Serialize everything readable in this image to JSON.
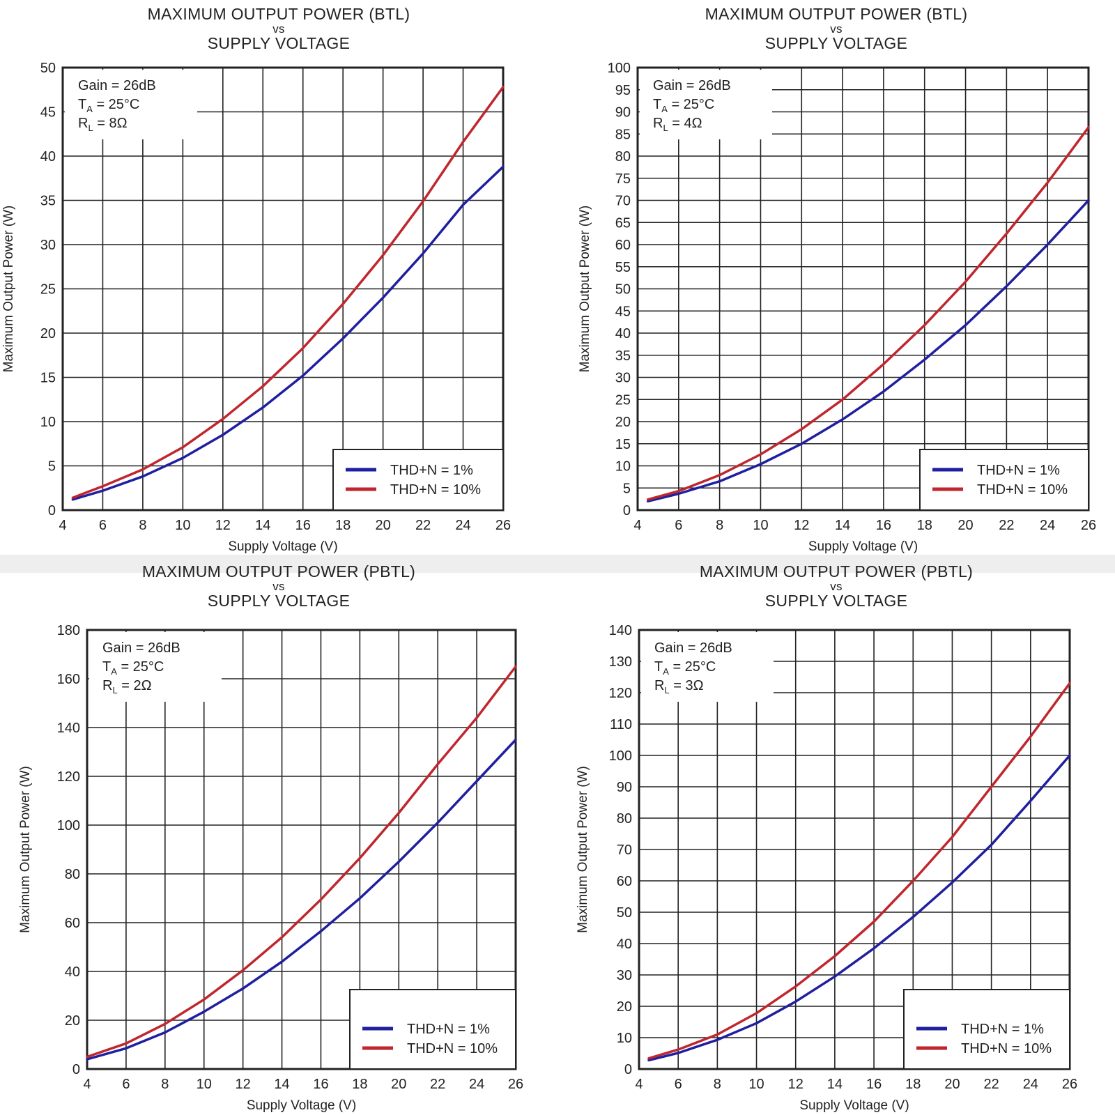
{
  "colors": {
    "series_1pct": "#1f1fa0",
    "series_10pct": "#c0262d",
    "grid": "#222222"
  },
  "chart_data": [
    {
      "type": "line",
      "title_line1": "MAXIMUM OUTPUT POWER (BTL)",
      "title_vs": "vs",
      "title_line2": "SUPPLY VOLTAGE",
      "xlabel": "Supply Voltage (V)",
      "ylabel": "Maximum Output Power (W)",
      "xlim": [
        4,
        26
      ],
      "ylim": [
        0,
        50
      ],
      "x_ticks": [
        "4",
        "6",
        "8",
        "10",
        "12",
        "14",
        "16",
        "18",
        "20",
        "22",
        "24",
        "26"
      ],
      "y_ticks": [
        "0",
        "5",
        "10",
        "15",
        "20",
        "25",
        "30",
        "35",
        "40",
        "45",
        "50"
      ],
      "conditions": {
        "gain": "Gain = 26dB",
        "ta": "T",
        "ta_sub": "A",
        "ta_val": " = 25°C",
        "rl": "R",
        "rl_sub": "L",
        "rl_val": " = 8Ω"
      },
      "series": [
        {
          "name": "THD+N = 1%",
          "x": [
            4.5,
            6,
            8,
            10,
            12,
            14,
            16,
            18,
            20,
            22,
            24,
            26
          ],
          "y": [
            1.2,
            2.2,
            3.8,
            5.9,
            8.5,
            11.6,
            15.2,
            19.4,
            24.0,
            29.0,
            34.5,
            38.8
          ]
        },
        {
          "name": "THD+N = 10%",
          "x": [
            4.5,
            6,
            8,
            10,
            12,
            14,
            16,
            18,
            20,
            22,
            24,
            26
          ],
          "y": [
            1.4,
            2.7,
            4.6,
            7.1,
            10.3,
            14.0,
            18.3,
            23.3,
            28.8,
            34.9,
            41.6,
            47.8
          ]
        }
      ]
    },
    {
      "type": "line",
      "title_line1": "MAXIMUM OUTPUT POWER (BTL)",
      "title_vs": "vs",
      "title_line2": "SUPPLY VOLTAGE",
      "xlabel": "Supply Voltage (V)",
      "ylabel": "Maximum Output Power (W)",
      "xlim": [
        4,
        26
      ],
      "ylim": [
        0,
        100
      ],
      "x_ticks": [
        "4",
        "6",
        "8",
        "10",
        "12",
        "14",
        "16",
        "18",
        "20",
        "22",
        "24",
        "26"
      ],
      "y_ticks": [
        "0",
        "5",
        "10",
        "15",
        "20",
        "25",
        "30",
        "35",
        "40",
        "45",
        "50",
        "55",
        "60",
        "65",
        "70",
        "75",
        "80",
        "85",
        "90",
        "95",
        "100"
      ],
      "conditions": {
        "gain": "Gain = 26dB",
        "ta": "T",
        "ta_sub": "A",
        "ta_val": " = 25°C",
        "rl": "R",
        "rl_sub": "L",
        "rl_val": " = 4Ω"
      },
      "series": [
        {
          "name": "THD+N = 1%",
          "x": [
            4.5,
            6,
            8,
            10,
            12,
            14,
            16,
            18,
            20,
            22,
            24,
            26
          ],
          "y": [
            2.0,
            3.7,
            6.5,
            10.4,
            15.0,
            20.5,
            26.8,
            34.0,
            41.8,
            50.6,
            60.0,
            70.0
          ]
        },
        {
          "name": "THD+N = 10%",
          "x": [
            4.5,
            6,
            8,
            10,
            12,
            14,
            16,
            18,
            20,
            22,
            24,
            26
          ],
          "y": [
            2.4,
            4.3,
            7.9,
            12.6,
            18.3,
            25.0,
            33.0,
            41.8,
            51.6,
            62.5,
            74.0,
            86.5
          ]
        }
      ]
    },
    {
      "type": "line",
      "title_line1": "MAXIMUM OUTPUT POWER (PBTL)",
      "title_vs": "vs",
      "title_line2": "SUPPLY VOLTAGE",
      "xlabel": "Supply Voltage (V)",
      "ylabel": "Maximum Output Power (W)",
      "xlim": [
        4,
        26
      ],
      "ylim": [
        0,
        180
      ],
      "x_ticks": [
        "4",
        "6",
        "8",
        "10",
        "12",
        "14",
        "16",
        "18",
        "20",
        "22",
        "24",
        "26"
      ],
      "y_ticks": [
        "0",
        "20",
        "40",
        "60",
        "80",
        "100",
        "120",
        "140",
        "160",
        "180"
      ],
      "conditions": {
        "gain": "Gain = 26dB",
        "ta": "T",
        "ta_sub": "A",
        "ta_val": " = 25°C",
        "rl": "R",
        "rl_sub": "L",
        "rl_val": " = 2Ω"
      },
      "series": [
        {
          "name": "THD+N = 1%",
          "x": [
            4,
            6,
            8,
            10,
            12,
            14,
            16,
            18,
            20,
            22,
            24,
            26
          ],
          "y": [
            4.0,
            8.5,
            15.0,
            23.5,
            33.0,
            44.0,
            56.5,
            70.0,
            85.0,
            101.0,
            118.0,
            135.0
          ]
        },
        {
          "name": "THD+N = 10%",
          "x": [
            4,
            6,
            8,
            10,
            12,
            14,
            16,
            18,
            20,
            22,
            24,
            26
          ],
          "y": [
            5.0,
            10.5,
            18.5,
            28.5,
            40.5,
            54.0,
            69.5,
            86.5,
            105.0,
            125.0,
            144.0,
            165.0
          ]
        }
      ]
    },
    {
      "type": "line",
      "title_line1": "MAXIMUM OUTPUT POWER (PBTL)",
      "title_vs": "vs",
      "title_line2": "SUPPLY VOLTAGE",
      "xlabel": "Supply Voltage (V)",
      "ylabel": "Maximum Output Power (W)",
      "xlim": [
        4,
        26
      ],
      "ylim": [
        0,
        140
      ],
      "x_ticks": [
        "4",
        "6",
        "8",
        "10",
        "12",
        "14",
        "16",
        "18",
        "20",
        "22",
        "24",
        "26"
      ],
      "y_ticks": [
        "0",
        "10",
        "20",
        "30",
        "40",
        "50",
        "60",
        "70",
        "80",
        "90",
        "100",
        "110",
        "120",
        "130",
        "140"
      ],
      "conditions": {
        "gain": "Gain = 26dB",
        "ta": "T",
        "ta_sub": "A",
        "ta_val": " = 25°C",
        "rl": "R",
        "rl_sub": "L",
        "rl_val": " = 3Ω"
      },
      "series": [
        {
          "name": "THD+N = 1%",
          "x": [
            4.5,
            6,
            8,
            10,
            12,
            14,
            16,
            18,
            20,
            22,
            24,
            26
          ],
          "y": [
            2.8,
            5.1,
            9.3,
            14.6,
            21.5,
            29.5,
            38.5,
            48.5,
            59.5,
            71.5,
            85.5,
            100.0
          ]
        },
        {
          "name": "THD+N = 10%",
          "x": [
            4.5,
            6,
            8,
            10,
            12,
            14,
            16,
            18,
            20,
            22,
            24,
            26
          ],
          "y": [
            3.4,
            6.2,
            11.0,
            17.8,
            26.3,
            36.0,
            47.0,
            60.0,
            74.0,
            90.0,
            106.0,
            123.0
          ]
        }
      ]
    }
  ]
}
